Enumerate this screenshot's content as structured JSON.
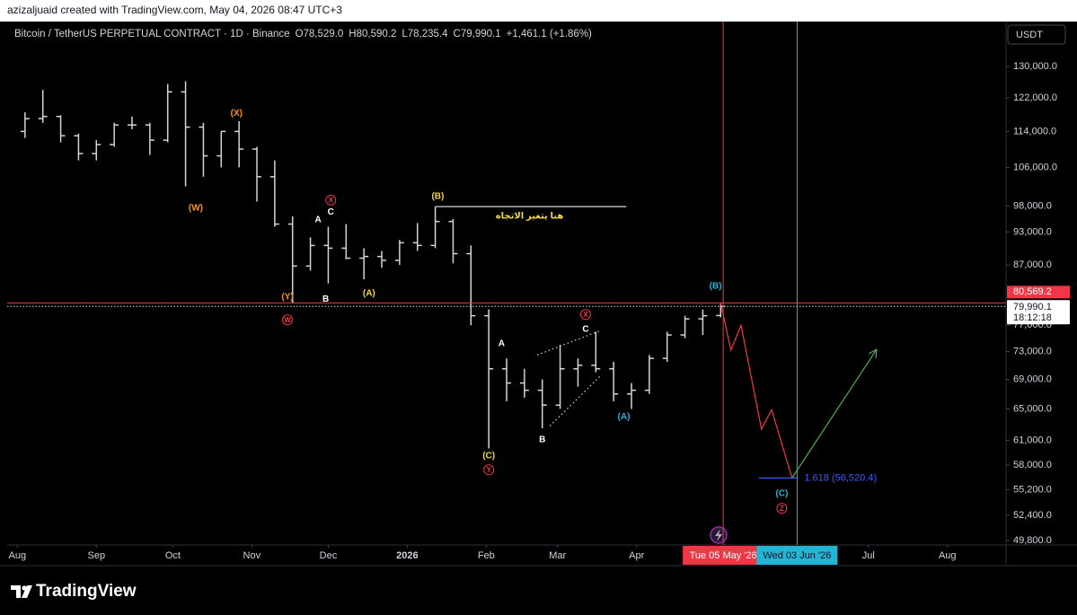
{
  "header": {
    "credit": "azizaljuaid created with TradingView.com, May 04, 2026 08:47 UTC+3"
  },
  "chart_data": {
    "type": "ohlc",
    "title": "Bitcoin / TetherUS PERPETUAL CONTRACT · 1D · Binance",
    "legend_values": [
      "O78,529.0",
      "H80,590.2",
      "L78,235.4",
      "C79,990.1",
      "+1,461.1 (+1.86%)"
    ],
    "currency": "USDT",
    "color": "#d1d4dc",
    "log_scale": true,
    "grid": false,
    "x": [
      "2025-08-04",
      "2025-08-11",
      "2025-08-18",
      "2025-08-25",
      "2025-09-01",
      "2025-09-08",
      "2025-09-15",
      "2025-09-22",
      "2025-09-29",
      "2025-10-06",
      "2025-10-13",
      "2025-10-20",
      "2025-10-27",
      "2025-11-03",
      "2025-11-10",
      "2025-11-17",
      "2025-11-24",
      "2025-12-01",
      "2025-12-08",
      "2025-12-15",
      "2025-12-22",
      "2025-12-29",
      "2026-01-05",
      "2026-01-12",
      "2026-01-19",
      "2026-01-26",
      "2026-02-02",
      "2026-02-09",
      "2026-02-16",
      "2026-02-23",
      "2026-03-02",
      "2026-03-09",
      "2026-03-16",
      "2026-03-23",
      "2026-03-30",
      "2026-04-06",
      "2026-04-13",
      "2026-04-20",
      "2026-04-27",
      "2026-05-04"
    ],
    "open": [
      114000,
      117000,
      117500,
      113000,
      109000,
      111000,
      115500,
      115500,
      112000,
      123500,
      115000,
      108500,
      114000,
      110000,
      104000,
      94500,
      86800,
      90500,
      90000,
      88200,
      88500,
      87800,
      91000,
      90500,
      95000,
      89000,
      78500,
      70500,
      68500,
      67500,
      65500,
      70500,
      71000,
      70500,
      67000,
      67500,
      72000,
      75500,
      78000,
      78529.0
    ],
    "high": [
      118500,
      124000,
      117800,
      113500,
      112000,
      116000,
      117500,
      116000,
      125500,
      126200,
      116000,
      114000,
      116400,
      110500,
      107500,
      96000,
      92000,
      94000,
      94500,
      90000,
      89500,
      91500,
      94700,
      97900,
      95500,
      90500,
      79500,
      72000,
      70500,
      69000,
      74000,
      72000,
      76000,
      71500,
      68500,
      72500,
      76000,
      78500,
      79500,
      80590.2
    ],
    "low": [
      112500,
      116000,
      111500,
      107500,
      107500,
      110500,
      114500,
      108700,
      111500,
      102000,
      104000,
      106000,
      106000,
      98900,
      94000,
      80500,
      86000,
      83800,
      88000,
      84500,
      86500,
      87000,
      89500,
      90000,
      87300,
      77000,
      60000,
      66000,
      66500,
      62500,
      65000,
      68000,
      70000,
      66000,
      65000,
      67000,
      71500,
      75000,
      75500,
      78235.4
    ],
    "close": [
      117000,
      117500,
      113000,
      109000,
      111000,
      115500,
      115500,
      112000,
      123500,
      115000,
      108500,
      114000,
      110000,
      104000,
      94500,
      86800,
      90500,
      90000,
      88200,
      88500,
      87800,
      91000,
      90500,
      95000,
      89000,
      78500,
      70500,
      68500,
      67500,
      65500,
      70500,
      71000,
      70500,
      67000,
      67500,
      72000,
      75500,
      78000,
      78500,
      79990.1
    ],
    "xlim": [
      "2025-07-28",
      "2026-08-24"
    ],
    "xticks": [
      {
        "value": "2025-08-01",
        "label": "Aug"
      },
      {
        "value": "2025-09-01",
        "label": "Sep"
      },
      {
        "value": "2025-10-01",
        "label": "Oct"
      },
      {
        "value": "2025-11-01",
        "label": "Nov"
      },
      {
        "value": "2025-12-01",
        "label": "Dec"
      },
      {
        "value": "2026-01-01",
        "label": "2026"
      },
      {
        "value": "2026-02-01",
        "label": "Feb"
      },
      {
        "value": "2026-03-01",
        "label": "Mar"
      },
      {
        "value": "2026-04-01",
        "label": "Apr"
      },
      {
        "value": "2026-07-01",
        "label": "Jul"
      },
      {
        "value": "2026-08-01",
        "label": "Aug"
      }
    ],
    "ylim": [
      49350,
      142400
    ],
    "yticks": [
      {
        "value": 130000,
        "label": "130,000.0"
      },
      {
        "value": 122000,
        "label": "122,000.0"
      },
      {
        "value": 114000,
        "label": "114,000.0"
      },
      {
        "value": 106000,
        "label": "106,000.0"
      },
      {
        "value": 98000,
        "label": "98,000.0"
      },
      {
        "value": 93000,
        "label": "93,000.0"
      },
      {
        "value": 87000,
        "label": "87,000.0"
      },
      {
        "value": 77000,
        "label": "77,000.0"
      },
      {
        "value": 73000,
        "label": "73,000.0"
      },
      {
        "value": 69000,
        "label": "69,000.0"
      },
      {
        "value": 65000,
        "label": "65,000.0"
      },
      {
        "value": 61000,
        "label": "61,000.0"
      },
      {
        "value": 58000,
        "label": "58,000.0"
      },
      {
        "value": 55200,
        "label": "55,200.0"
      },
      {
        "value": 52400,
        "label": "52,400.0"
      },
      {
        "value": 49800,
        "label": "49,800.0"
      }
    ],
    "price_lines": [
      {
        "value": 80569.2,
        "label": "80,569.2",
        "color": "#f23645",
        "style": "solid"
      },
      {
        "value": 79990.1,
        "label": "79,990.1",
        "countdown": "18:12:18",
        "color": "#d1d4dc",
        "style": "dotted"
      }
    ],
    "vertical_lines": [
      {
        "value": "2026-05-05",
        "label": "Tue 05 May '26",
        "color": "#f23645"
      },
      {
        "value": "2026-06-03",
        "label": "Wed 03 Jun '26",
        "color": "#22b5d6"
      }
    ],
    "annotations": [
      {
        "text": "(X)",
        "date": "2025-10-26",
        "price": 118300,
        "color": "#f7931a"
      },
      {
        "text": "(W)",
        "date": "2025-10-10",
        "price": 97700,
        "color": "#f7931a"
      },
      {
        "text": "X",
        "date": "2025-12-02",
        "price": 99200,
        "color": "#f23645",
        "circled": true
      },
      {
        "text": "A",
        "date": "2025-11-27",
        "price": 95400,
        "color": "#ffffff"
      },
      {
        "text": "C",
        "date": "2025-12-02",
        "price": 96850,
        "color": "#ffffff"
      },
      {
        "text": "(Y)",
        "date": "2025-11-15",
        "price": 81600,
        "color": "#f7931a"
      },
      {
        "text": "B",
        "date": "2025-11-30",
        "price": 81200,
        "color": "#ffffff"
      },
      {
        "text": "(A)",
        "date": "2025-12-17",
        "price": 82200,
        "color": "#f5d742"
      },
      {
        "text": "W",
        "date": "2025-11-15",
        "price": 77850,
        "color": "#f23645",
        "circled": true
      },
      {
        "text": "(B)",
        "date": "2026-01-13",
        "price": 100050,
        "color": "#f5d742"
      },
      {
        "text": "هنا يتغير الاتجاه",
        "date": "2026-02-18",
        "price": 96140,
        "color": "#f5d742"
      },
      {
        "text": "A",
        "date": "2026-02-07",
        "price": 74250,
        "color": "#ffffff"
      },
      {
        "text": "(C)",
        "date": "2026-02-02",
        "price": 59160,
        "color": "#f5d742"
      },
      {
        "text": "Y",
        "date": "2026-02-02",
        "price": 57460,
        "color": "#f23645",
        "circled": true
      },
      {
        "text": "B",
        "date": "2026-02-23",
        "price": 61130,
        "color": "#ffffff"
      },
      {
        "text": "X",
        "date": "2026-03-12",
        "price": 78700,
        "color": "#f23645",
        "circled": true
      },
      {
        "text": "C",
        "date": "2026-03-12",
        "price": 76450,
        "color": "#ffffff"
      },
      {
        "text": "(A)",
        "date": "2026-03-27",
        "price": 64000,
        "color": "#22b5d6"
      },
      {
        "text": "(B)",
        "date": "2026-05-02",
        "price": 83400,
        "color": "#22b5d6"
      },
      {
        "text": "(C)",
        "date": "2026-05-28",
        "price": 54800,
        "color": "#22b5d6"
      },
      {
        "text": "Z",
        "date": "2026-05-28",
        "price": 53150,
        "color": "#f23645",
        "circled": true
      }
    ],
    "drawings": [
      {
        "color": "#d1d4dc",
        "style": "solid",
        "x": [
          "2026-01-12",
          "2026-03-28"
        ],
        "y": [
          97900,
          97900
        ]
      },
      {
        "color": "#d1d4dc",
        "style": "dotted",
        "x": [
          "2026-02-21",
          "2026-03-18"
        ],
        "y": [
          72500,
          76200
        ]
      },
      {
        "color": "#d1d4dc",
        "style": "dotted",
        "x": [
          "2026-02-26",
          "2026-03-18"
        ],
        "y": [
          62800,
          69550
        ]
      },
      {
        "color": "#f23645",
        "style": "solid",
        "x": [
          "2026-05-04",
          "2026-05-08",
          "2026-05-12",
          "2026-05-20",
          "2026-05-24",
          "2026-06-01"
        ],
        "y": [
          80569.2,
          73200,
          77000,
          62400,
          64900,
          56520.4
        ]
      },
      {
        "color": "#4caf50",
        "style": "solid",
        "arrow": true,
        "x": [
          "2026-06-01",
          "2026-07-04"
        ],
        "y": [
          56520.4,
          73200
        ]
      },
      {
        "color": "#3d5afe",
        "style": "solid",
        "x": [
          "2026-05-19",
          "2026-06-03"
        ],
        "y": [
          56520.4,
          56520.4
        ],
        "label": "1.618 (56,520.4)"
      }
    ]
  },
  "footer": {
    "brand": "TradingView"
  }
}
